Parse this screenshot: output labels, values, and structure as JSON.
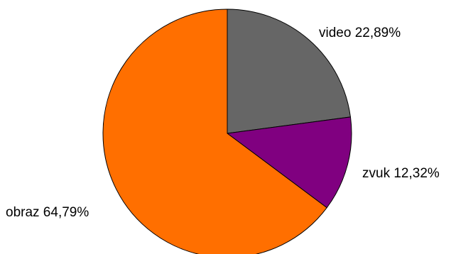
{
  "chart_data": {
    "type": "pie",
    "slices": [
      {
        "name": "video",
        "value": 22.89,
        "label": "video 22,89%",
        "color": "#666666"
      },
      {
        "name": "zvuk",
        "value": 12.32,
        "label": "zvuk 12,32%",
        "color": "#800080"
      },
      {
        "name": "obraz",
        "value": 64.79,
        "label": "obraz 64,79%",
        "color": "#ff6f00"
      }
    ],
    "start_angle": "12 o'clock",
    "direction": "clockwise",
    "legend": "none"
  }
}
